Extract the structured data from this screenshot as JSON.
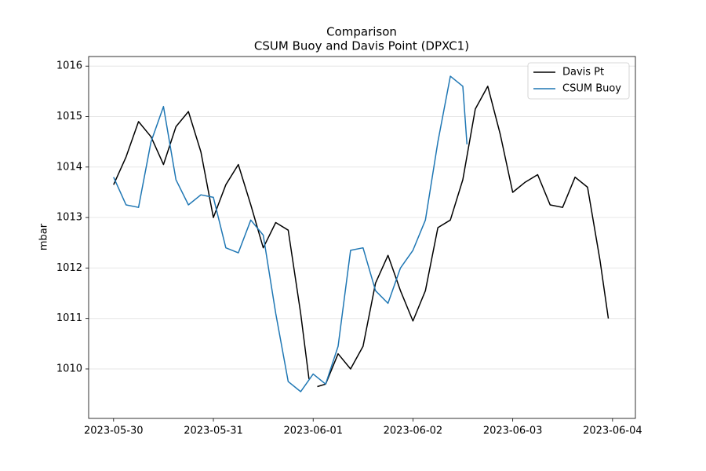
{
  "chart_data": {
    "type": "line",
    "title": "Comparison",
    "subtitle": "CSUM Buoy and Davis Point (DPXC1)",
    "ylabel": "mbar",
    "xlim": [
      "2023-05-29 18:00",
      "2023-06-04 05:30"
    ],
    "xticks": [
      "2023-05-30",
      "2023-05-31",
      "2023-06-01",
      "2023-06-02",
      "2023-06-03",
      "2023-06-04"
    ],
    "ylim": [
      1009.02,
      1016.19
    ],
    "yticks": [
      1010,
      1011,
      1012,
      1013,
      1014,
      1015,
      1016
    ],
    "grid": "y",
    "legend": "upper right",
    "series": [
      {
        "name": "Davis Pt",
        "color": "#000000",
        "x": [
          "2023-05-30 00:00",
          "2023-05-30 03:00",
          "2023-05-30 06:00",
          "2023-05-30 09:00",
          "2023-05-30 12:00",
          "2023-05-30 15:00",
          "2023-05-30 18:00",
          "2023-05-30 21:00",
          "2023-05-31 00:00",
          "2023-05-31 03:00",
          "2023-05-31 06:00",
          "2023-05-31 09:00",
          "2023-05-31 12:00",
          "2023-05-31 15:00",
          "2023-05-31 18:00",
          "2023-05-31 21:00",
          "2023-05-31 23:00",
          "2023-06-01 00:00",
          "2023-06-01 01:00",
          "2023-06-01 03:00",
          "2023-06-01 06:00",
          "2023-06-01 09:00",
          "2023-06-01 12:00",
          "2023-06-01 15:00",
          "2023-06-01 18:00",
          "2023-06-01 21:00",
          "2023-06-02 00:00",
          "2023-06-02 03:00",
          "2023-06-02 06:00",
          "2023-06-02 09:00",
          "2023-06-02 12:00",
          "2023-06-02 15:00",
          "2023-06-02 18:00",
          "2023-06-02 21:00",
          "2023-06-03 00:00",
          "2023-06-03 03:00",
          "2023-06-03 06:00",
          "2023-06-03 09:00",
          "2023-06-03 12:00",
          "2023-06-03 15:00",
          "2023-06-03 18:00",
          "2023-06-03 21:00",
          "2023-06-03 23:00"
        ],
        "values": [
          1013.65,
          1014.2,
          1014.9,
          1014.6,
          1014.05,
          1014.8,
          1015.1,
          1014.3,
          1013.0,
          1013.65,
          1014.05,
          1013.25,
          1012.4,
          1012.9,
          1012.75,
          1011.1,
          1009.8,
          null,
          1009.65,
          1009.7,
          1010.3,
          1010.0,
          1010.45,
          1011.7,
          1012.25,
          1011.55,
          1010.95,
          1011.55,
          1012.8,
          1012.95,
          1013.75,
          1015.15,
          1015.6,
          1014.65,
          1013.5,
          1013.7,
          1013.85,
          1013.25,
          1013.2,
          1013.8,
          1013.6,
          1012.15,
          1011.0
        ]
      },
      {
        "name": "CSUM Buoy",
        "color": "#1f77b4",
        "x": [
          "2023-05-30 00:00",
          "2023-05-30 03:00",
          "2023-05-30 06:00",
          "2023-05-30 09:00",
          "2023-05-30 12:00",
          "2023-05-30 15:00",
          "2023-05-30 18:00",
          "2023-05-30 21:00",
          "2023-05-31 00:00",
          "2023-05-31 03:00",
          "2023-05-31 06:00",
          "2023-05-31 09:00",
          "2023-05-31 12:00",
          "2023-05-31 15:00",
          "2023-05-31 18:00",
          "2023-05-31 21:00",
          "2023-06-01 00:00",
          "2023-06-01 03:00",
          "2023-06-01 06:00",
          "2023-06-01 09:00",
          "2023-06-01 12:00",
          "2023-06-01 15:00",
          "2023-06-01 18:00",
          "2023-06-01 21:00",
          "2023-06-02 00:00",
          "2023-06-02 03:00",
          "2023-06-02 06:00",
          "2023-06-02 09:00",
          "2023-06-02 12:00",
          "2023-06-02 13:00"
        ],
        "values": [
          1013.8,
          1013.25,
          1013.2,
          1014.5,
          1015.2,
          1013.75,
          1013.25,
          1013.45,
          1013.4,
          1012.4,
          1012.3,
          1012.95,
          1012.65,
          1011.1,
          1009.75,
          1009.55,
          1009.9,
          1009.7,
          1010.45,
          1012.35,
          1012.4,
          1011.55,
          1011.3,
          1012.0,
          1012.35,
          1012.95,
          1014.5,
          1015.8,
          1015.6,
          1014.45
        ]
      }
    ]
  }
}
